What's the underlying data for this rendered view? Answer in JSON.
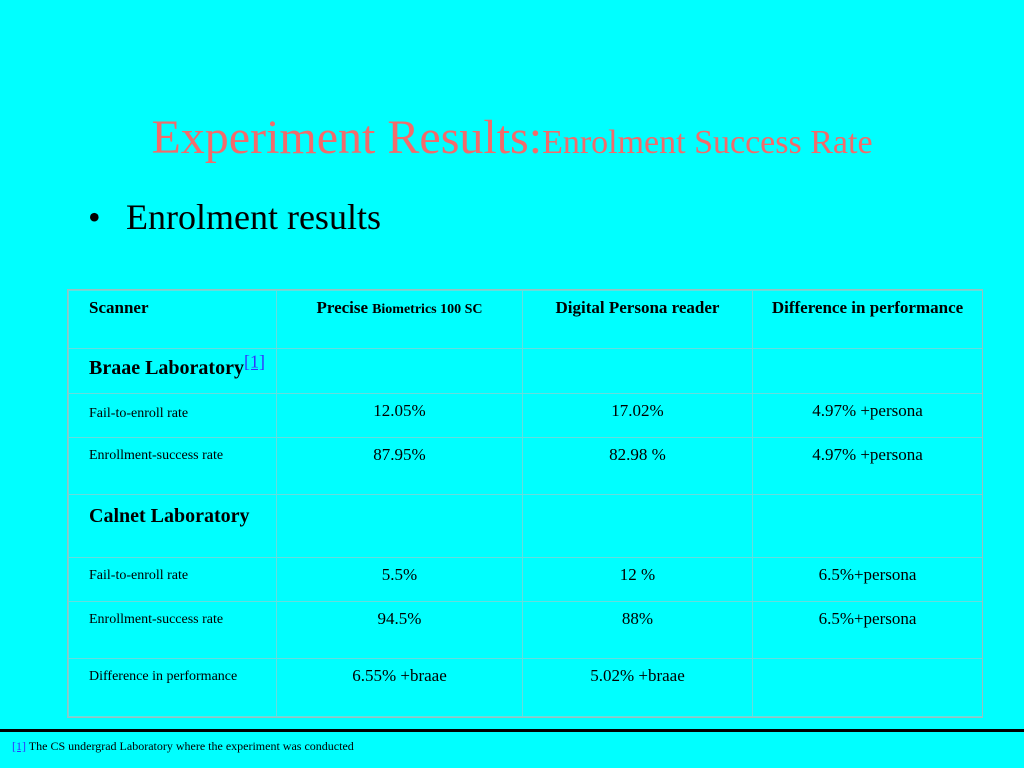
{
  "slide": {
    "title_main": "Experiment Results:",
    "title_sub": "Enrolment Success Rate",
    "bullet_symbol": "•",
    "bullet_text": "Enrolment results"
  },
  "table": {
    "header": {
      "scanner": "Scanner",
      "precise_bold": "Precise",
      "precise_small": "Biometrics 100 SC",
      "digital_persona": "Digital Persona reader",
      "difference": "Difference in performance"
    },
    "braae": {
      "label": "Braae Laboratory",
      "ref": "[1]",
      "rows": [
        {
          "label": "Fail-to-enroll rate",
          "precise": "12.05%",
          "digital": "17.02%",
          "diff": "4.97% +persona"
        },
        {
          "label": "Enrollment-success rate",
          "precise": "87.95%",
          "digital": "82.98 %",
          "diff": "4.97% +persona"
        }
      ]
    },
    "calnet": {
      "label": "Calnet Laboratory",
      "rows": [
        {
          "label": "Fail-to-enroll rate",
          "precise": "5.5%",
          "digital": "12 %",
          "diff": "6.5%+persona"
        },
        {
          "label": "Enrollment-success rate",
          "precise": "94.5%",
          "digital": "88%",
          "diff": "6.5%+persona"
        }
      ]
    },
    "difference_row": {
      "label": "Difference in performance",
      "precise": "6.55% +braae",
      "digital": "5.02% +braae",
      "diff": ""
    }
  },
  "footnote": {
    "ref": "[1]",
    "text": " The CS undergrad Laboratory where the experiment was conducted"
  },
  "colors": {
    "background": "#00FFFF",
    "title": "#F26B6B",
    "link": "#3333FF"
  }
}
